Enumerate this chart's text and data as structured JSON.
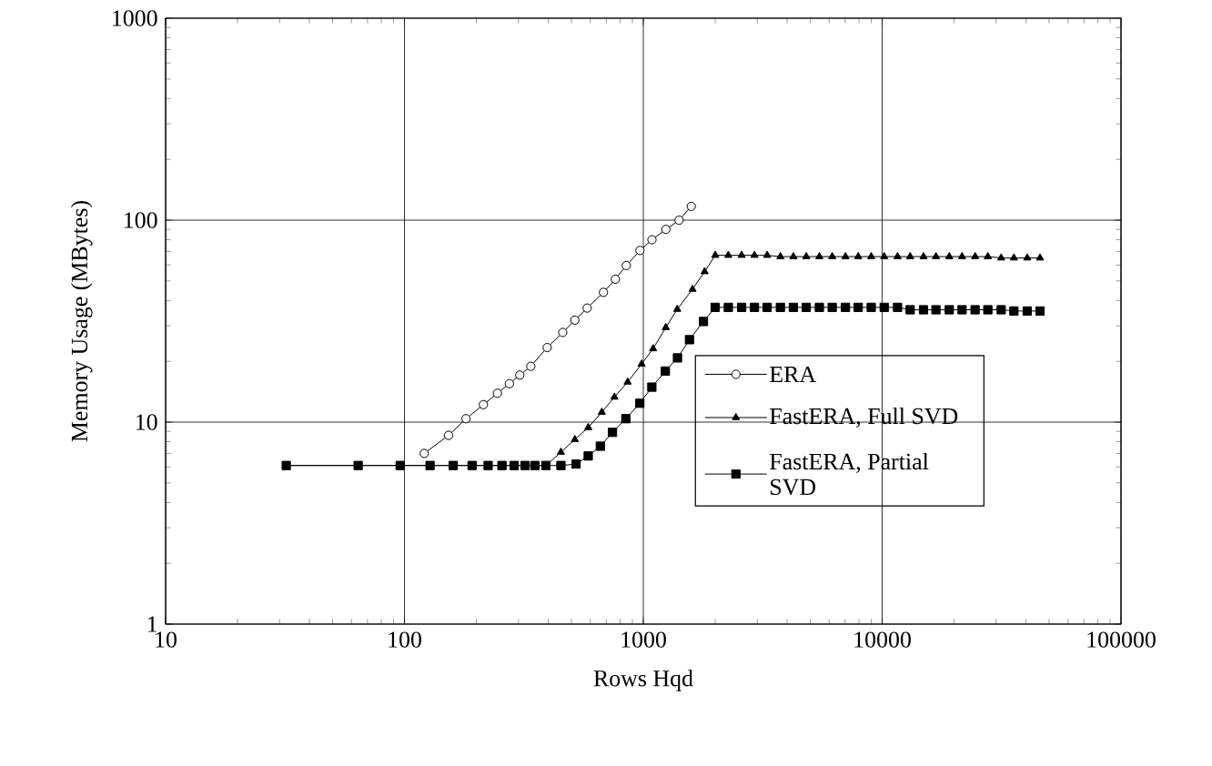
{
  "chart_data": {
    "type": "line",
    "xlabel": "Rows Hqd",
    "ylabel": "Memory Usage (MBytes)",
    "log": "xy",
    "xlim": [
      10,
      100000
    ],
    "ylim": [
      1,
      1000
    ],
    "xticks": [
      10,
      100,
      1000,
      10000,
      100000
    ],
    "yticks": [
      1,
      10,
      100,
      1000
    ],
    "grid": true,
    "legend": "right",
    "series": [
      {
        "name": "ERA",
        "color": "#000000",
        "marker": "circle",
        "x": [
          121,
          153,
          181,
          214,
          245,
          275,
          304,
          338,
          396,
          460,
          517,
          582,
          681,
          764,
          849,
          968,
          1087,
          1243,
          1412,
          1588
        ],
        "values": [
          7.0,
          8.6,
          10.4,
          12.2,
          13.9,
          15.5,
          17.1,
          18.9,
          23.4,
          27.8,
          32,
          36.7,
          43.9,
          51,
          59.6,
          70.8,
          80,
          90,
          100,
          117
        ]
      },
      {
        "name": "FastERA, Full SVD",
        "color": "#000000",
        "marker": "triangle",
        "x": [
          32,
          64,
          96,
          128,
          160,
          192,
          224,
          256,
          288,
          320,
          352,
          391,
          452,
          517,
          588,
          670,
          757,
          860,
          984,
          1099,
          1242,
          1387,
          1607,
          1806,
          2000,
          2270,
          2580,
          2920,
          3300,
          3750,
          4250,
          4810,
          5460,
          6180,
          7020,
          7940,
          9000,
          10200,
          11600,
          13100,
          14900,
          16800,
          19100,
          21600,
          24500,
          27700,
          31500,
          35600,
          40500,
          45800
        ],
        "values": [
          6.1,
          6.1,
          6.1,
          6.1,
          6.1,
          6.1,
          6.1,
          6.1,
          6.1,
          6.1,
          6.1,
          6.1,
          7.1,
          8.2,
          9.4,
          11.2,
          13.3,
          15.8,
          19.4,
          23.1,
          29.4,
          36.2,
          45.5,
          55.6,
          67,
          67,
          67,
          67,
          67,
          66,
          66,
          66,
          66,
          66,
          66,
          66,
          66,
          66,
          66,
          66,
          66,
          66,
          66,
          66,
          66,
          66,
          65,
          65,
          65,
          65
        ]
      },
      {
        "name": "FastERA, Partial SVD",
        "color": "#000000",
        "marker": "square",
        "x": [
          32,
          64,
          96,
          128,
          160,
          192,
          224,
          256,
          288,
          320,
          352,
          391,
          452,
          523,
          588,
          661,
          743,
          845,
          967,
          1086,
          1237,
          1390,
          1561,
          1786,
          2000,
          2270,
          2580,
          2920,
          3300,
          3750,
          4250,
          4810,
          5460,
          6180,
          7020,
          7940,
          9000,
          10200,
          11600,
          13100,
          14900,
          16800,
          19100,
          21600,
          24500,
          27700,
          31500,
          35600,
          40500,
          45800
        ],
        "values": [
          6.1,
          6.1,
          6.1,
          6.1,
          6.1,
          6.1,
          6.1,
          6.1,
          6.1,
          6.1,
          6.1,
          6.1,
          6.1,
          6.2,
          6.8,
          7.6,
          8.9,
          10.4,
          12.4,
          14.9,
          17.9,
          20.8,
          25.6,
          31.5,
          37,
          37,
          37,
          37,
          37,
          37,
          37,
          37,
          37,
          37,
          37,
          37,
          37,
          37,
          37,
          36,
          36,
          36,
          36,
          36,
          36,
          36,
          36,
          35.5,
          35.5,
          35.5
        ]
      }
    ]
  }
}
